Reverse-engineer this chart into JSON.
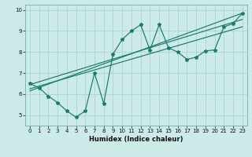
{
  "title": "",
  "xlabel": "Humidex (Indice chaleur)",
  "bg_color": "#cceae7",
  "grid_color": "#aad4d0",
  "line_color": "#1a7a6e",
  "xlim": [
    -0.5,
    23.5
  ],
  "ylim": [
    4.5,
    10.25
  ],
  "xticks": [
    0,
    1,
    2,
    3,
    4,
    5,
    6,
    7,
    8,
    9,
    10,
    11,
    12,
    13,
    14,
    15,
    16,
    17,
    18,
    19,
    20,
    21,
    22,
    23
  ],
  "yticks": [
    5,
    6,
    7,
    8,
    9,
    10
  ],
  "line1_x": [
    0,
    1,
    2,
    3,
    4,
    5,
    6,
    7,
    8,
    9,
    10,
    11,
    12,
    13,
    14,
    15,
    16,
    17,
    18,
    19,
    20,
    21,
    22,
    23
  ],
  "line1_y": [
    6.5,
    6.3,
    5.9,
    5.6,
    5.2,
    4.9,
    5.2,
    7.0,
    5.55,
    7.9,
    8.6,
    9.0,
    9.3,
    8.1,
    9.3,
    8.2,
    8.0,
    7.65,
    7.75,
    8.05,
    8.1,
    9.2,
    9.35,
    9.85
  ],
  "line2_x": [
    0,
    23
  ],
  "line2_y": [
    6.15,
    9.85
  ],
  "line3_x": [
    0,
    23
  ],
  "line3_y": [
    6.45,
    9.55
  ],
  "line4_x": [
    0,
    23
  ],
  "line4_y": [
    6.25,
    9.2
  ]
}
